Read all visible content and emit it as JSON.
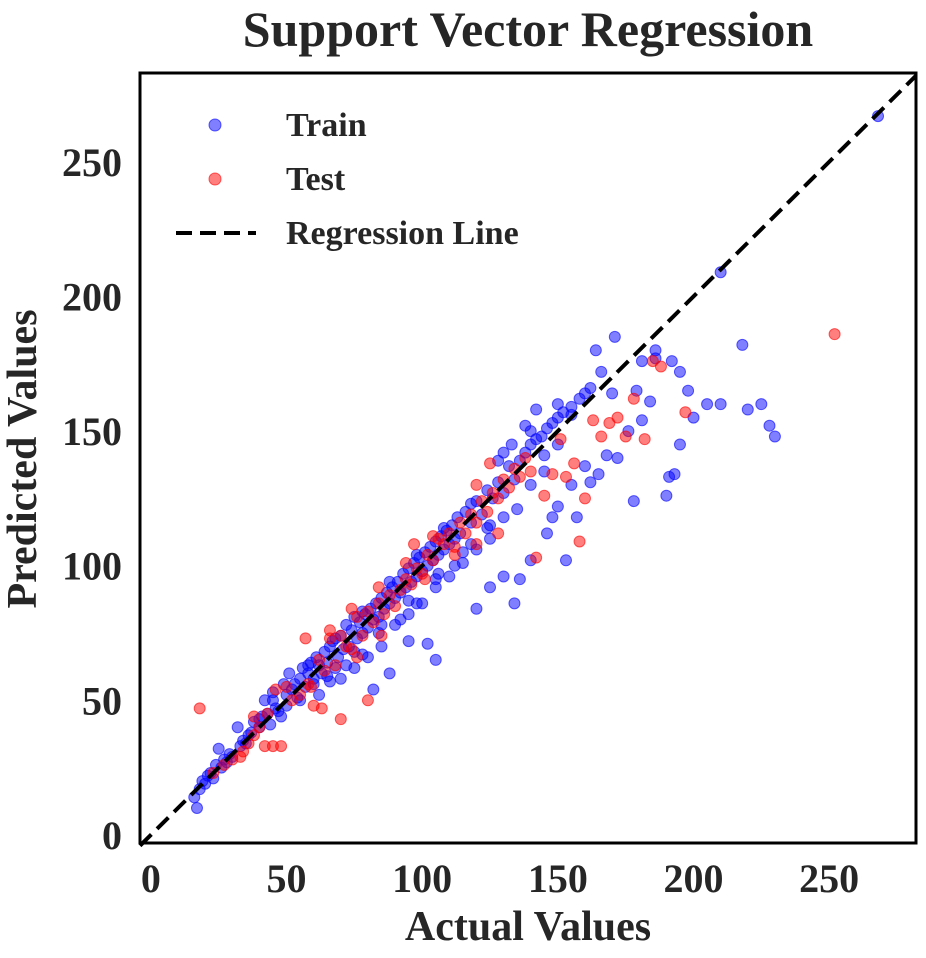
{
  "chart_data": {
    "type": "scatter",
    "title": "Support Vector Regression",
    "xlabel": "Actual Values",
    "ylabel": "Predicted Values",
    "xlim": [
      -4,
      282
    ],
    "ylim": [
      -3,
      283
    ],
    "xticks": [
      0,
      50,
      100,
      150,
      200,
      250
    ],
    "yticks": [
      0,
      50,
      100,
      150,
      200,
      250
    ],
    "grid": false,
    "legend_position": "top-left",
    "legend": {
      "train_label": "Train",
      "test_label": "Test",
      "line_label": "Regression Line"
    },
    "colors": {
      "train": "#0000ff",
      "test": "#ff0000",
      "line": "#000000",
      "text": "#262626"
    },
    "regression_line": {
      "x": [
        -4,
        282
      ],
      "y": [
        -4,
        282
      ]
    },
    "series": [
      {
        "name": "Train",
        "points": [
          [
            16,
            14
          ],
          [
            17,
            10
          ],
          [
            19,
            20
          ],
          [
            21,
            22
          ],
          [
            22,
            23
          ],
          [
            24,
            26
          ],
          [
            25,
            32
          ],
          [
            27,
            28
          ],
          [
            29,
            30
          ],
          [
            30,
            29
          ],
          [
            32,
            40
          ],
          [
            34,
            35
          ],
          [
            35,
            34
          ],
          [
            37,
            38
          ],
          [
            38,
            42
          ],
          [
            40,
            40
          ],
          [
            41,
            44
          ],
          [
            42,
            50
          ],
          [
            43,
            45
          ],
          [
            44,
            41
          ],
          [
            45,
            53
          ],
          [
            46,
            47
          ],
          [
            47,
            46
          ],
          [
            48,
            44
          ],
          [
            49,
            56
          ],
          [
            50,
            52
          ],
          [
            51,
            60
          ],
          [
            52,
            54
          ],
          [
            53,
            56
          ],
          [
            54,
            51
          ],
          [
            55,
            58
          ],
          [
            56,
            62
          ],
          [
            57,
            55
          ],
          [
            58,
            60
          ],
          [
            59,
            64
          ],
          [
            60,
            58
          ],
          [
            61,
            66
          ],
          [
            62,
            63
          ],
          [
            63,
            60
          ],
          [
            64,
            68
          ],
          [
            65,
            64
          ],
          [
            66,
            70
          ],
          [
            67,
            72
          ],
          [
            68,
            62
          ],
          [
            69,
            66
          ],
          [
            70,
            74
          ],
          [
            71,
            69
          ],
          [
            72,
            78
          ],
          [
            73,
            70
          ],
          [
            74,
            76
          ],
          [
            75,
            81
          ],
          [
            76,
            73
          ],
          [
            77,
            79
          ],
          [
            78,
            75
          ],
          [
            79,
            82
          ],
          [
            80,
            77
          ],
          [
            81,
            84
          ],
          [
            82,
            80
          ],
          [
            83,
            86
          ],
          [
            84,
            81
          ],
          [
            85,
            88
          ],
          [
            86,
            84
          ],
          [
            87,
            90
          ],
          [
            88,
            86
          ],
          [
            89,
            92
          ],
          [
            90,
            88
          ],
          [
            91,
            94
          ],
          [
            92,
            90
          ],
          [
            93,
            97
          ],
          [
            94,
            92
          ],
          [
            95,
            99
          ],
          [
            96,
            94
          ],
          [
            97,
            101
          ],
          [
            98,
            96
          ],
          [
            99,
            103
          ],
          [
            100,
            98
          ],
          [
            101,
            105
          ],
          [
            102,
            100
          ],
          [
            103,
            107
          ],
          [
            104,
            102
          ],
          [
            105,
            109
          ],
          [
            106,
            104
          ],
          [
            107,
            111
          ],
          [
            108,
            106
          ],
          [
            109,
            113
          ],
          [
            110,
            108
          ],
          [
            111,
            115
          ],
          [
            112,
            110
          ],
          [
            113,
            118
          ],
          [
            114,
            112
          ],
          [
            116,
            120
          ],
          [
            118,
            116
          ],
          [
            120,
            124
          ],
          [
            122,
            119
          ],
          [
            124,
            128
          ],
          [
            126,
            125
          ],
          [
            128,
            131
          ],
          [
            130,
            127
          ],
          [
            132,
            137
          ],
          [
            134,
            132
          ],
          [
            136,
            139
          ],
          [
            138,
            142
          ],
          [
            140,
            145
          ],
          [
            142,
            147
          ],
          [
            144,
            148
          ],
          [
            146,
            151
          ],
          [
            148,
            153
          ],
          [
            150,
            155
          ],
          [
            152,
            157
          ],
          [
            155,
            159
          ],
          [
            158,
            162
          ],
          [
            160,
            164
          ],
          [
            162,
            166
          ],
          [
            90,
            78
          ],
          [
            95,
            82
          ],
          [
            100,
            86
          ],
          [
            105,
            92
          ],
          [
            110,
            96
          ],
          [
            115,
            101
          ],
          [
            120,
            106
          ],
          [
            125,
            110
          ],
          [
            85,
            70
          ],
          [
            80,
            66
          ],
          [
            75,
            62
          ],
          [
            70,
            58
          ],
          [
            95,
            72
          ],
          [
            102,
            71
          ],
          [
            105,
            65
          ],
          [
            88,
            60
          ],
          [
            82,
            54
          ],
          [
            120,
            84
          ],
          [
            125,
            92
          ],
          [
            130,
            96
          ],
          [
            134,
            86
          ],
          [
            136,
            95
          ],
          [
            140,
            102
          ],
          [
            146,
            112
          ],
          [
            148,
            118
          ],
          [
            150,
            122
          ],
          [
            153,
            102
          ],
          [
            155,
            130
          ],
          [
            157,
            118
          ],
          [
            160,
            137
          ],
          [
            162,
            131
          ],
          [
            165,
            134
          ],
          [
            168,
            141
          ],
          [
            172,
            140
          ],
          [
            176,
            150
          ],
          [
            178,
            124
          ],
          [
            181,
            154
          ],
          [
            184,
            161
          ],
          [
            186,
            177
          ],
          [
            190,
            126
          ],
          [
            191,
            133
          ],
          [
            193,
            134
          ],
          [
            195,
            145
          ],
          [
            198,
            165
          ],
          [
            200,
            155
          ],
          [
            205,
            160
          ],
          [
            210,
            160
          ],
          [
            218,
            182
          ],
          [
            220,
            158
          ],
          [
            225,
            160
          ],
          [
            228,
            152
          ],
          [
            230,
            148
          ],
          [
            210,
            209
          ],
          [
            268,
            267
          ],
          [
            155,
            156
          ],
          [
            164,
            180
          ],
          [
            166,
            172
          ],
          [
            170,
            164
          ],
          [
            171,
            185
          ],
          [
            179,
            165
          ],
          [
            181,
            176
          ],
          [
            186,
            180
          ],
          [
            192,
            176
          ],
          [
            195,
            172
          ],
          [
            140,
            130
          ],
          [
            145,
            141
          ],
          [
            142,
            158
          ],
          [
            150,
            145
          ],
          [
            128,
            139
          ],
          [
            133,
            145
          ],
          [
            138,
            152
          ],
          [
            60,
            56
          ],
          [
            62,
            52
          ],
          [
            66,
            57
          ],
          [
            72,
            63
          ],
          [
            78,
            67
          ],
          [
            84,
            75
          ],
          [
            92,
            80
          ],
          [
            98,
            86
          ],
          [
            106,
            97
          ],
          [
            112,
            100
          ],
          [
            118,
            108
          ],
          [
            124,
            114
          ],
          [
            130,
            118
          ],
          [
            36,
            37
          ],
          [
            33,
            33
          ],
          [
            28,
            27
          ],
          [
            26,
            25
          ],
          [
            23,
            21
          ],
          [
            20,
            19
          ],
          [
            18,
            17
          ],
          [
            50,
            48
          ],
          [
            55,
            50
          ],
          [
            65,
            59
          ],
          [
            75,
            68
          ],
          [
            85,
            78
          ],
          [
            95,
            87
          ],
          [
            105,
            95
          ],
          [
            115,
            105
          ],
          [
            125,
            115
          ],
          [
            135,
            121
          ],
          [
            145,
            135
          ],
          [
            58,
            63
          ],
          [
            68,
            73
          ],
          [
            78,
            83
          ],
          [
            88,
            94
          ],
          [
            98,
            104
          ],
          [
            108,
            114
          ],
          [
            118,
            123
          ],
          [
            45,
            50
          ],
          [
            40,
            43
          ],
          [
            130,
            142
          ],
          [
            140,
            150
          ],
          [
            150,
            160
          ]
        ]
      },
      {
        "name": "Test",
        "points": [
          [
            18,
            47
          ],
          [
            23,
            23
          ],
          [
            27,
            26
          ],
          [
            30,
            28
          ],
          [
            33,
            29
          ],
          [
            36,
            34
          ],
          [
            38,
            44
          ],
          [
            40,
            40
          ],
          [
            42,
            33
          ],
          [
            45,
            33
          ],
          [
            48,
            33
          ],
          [
            50,
            55
          ],
          [
            52,
            50
          ],
          [
            55,
            52
          ],
          [
            58,
            56
          ],
          [
            60,
            48
          ],
          [
            62,
            65
          ],
          [
            64,
            61
          ],
          [
            66,
            73
          ],
          [
            68,
            63
          ],
          [
            70,
            74
          ],
          [
            72,
            70
          ],
          [
            74,
            69
          ],
          [
            76,
            81
          ],
          [
            78,
            74
          ],
          [
            80,
            83
          ],
          [
            82,
            79
          ],
          [
            84,
            86
          ],
          [
            86,
            82
          ],
          [
            88,
            89
          ],
          [
            90,
            85
          ],
          [
            92,
            91
          ],
          [
            94,
            95
          ],
          [
            96,
            93
          ],
          [
            98,
            99
          ],
          [
            100,
            97
          ],
          [
            102,
            104
          ],
          [
            104,
            102
          ],
          [
            106,
            110
          ],
          [
            108,
            108
          ],
          [
            110,
            112
          ],
          [
            112,
            107
          ],
          [
            114,
            116
          ],
          [
            116,
            112
          ],
          [
            118,
            119
          ],
          [
            120,
            116
          ],
          [
            122,
            124
          ],
          [
            124,
            120
          ],
          [
            126,
            127
          ],
          [
            128,
            125
          ],
          [
            130,
            132
          ],
          [
            132,
            129
          ],
          [
            134,
            136
          ],
          [
            136,
            133
          ],
          [
            138,
            140
          ],
          [
            140,
            135
          ],
          [
            142,
            103
          ],
          [
            145,
            126
          ],
          [
            148,
            134
          ],
          [
            151,
            147
          ],
          [
            153,
            133
          ],
          [
            156,
            138
          ],
          [
            158,
            109
          ],
          [
            160,
            125
          ],
          [
            163,
            154
          ],
          [
            166,
            148
          ],
          [
            169,
            153
          ],
          [
            172,
            155
          ],
          [
            175,
            148
          ],
          [
            178,
            162
          ],
          [
            182,
            147
          ],
          [
            185,
            176
          ],
          [
            188,
            174
          ],
          [
            197,
            157
          ],
          [
            252,
            186
          ],
          [
            70,
            43
          ],
          [
            80,
            50
          ],
          [
            63,
            47
          ],
          [
            59,
            55
          ],
          [
            57,
            73
          ],
          [
            66,
            76
          ],
          [
            74,
            84
          ],
          [
            84,
            92
          ],
          [
            94,
            101
          ],
          [
            104,
            111
          ],
          [
            112,
            104
          ],
          [
            120,
            108
          ],
          [
            128,
            112
          ],
          [
            85,
            74
          ],
          [
            76,
            66
          ],
          [
            46,
            54
          ],
          [
            43,
            45
          ],
          [
            38,
            37
          ],
          [
            34,
            31
          ],
          [
            120,
            130
          ],
          [
            125,
            138
          ],
          [
            97,
            108
          ],
          [
            101,
            95
          ]
        ]
      }
    ]
  }
}
